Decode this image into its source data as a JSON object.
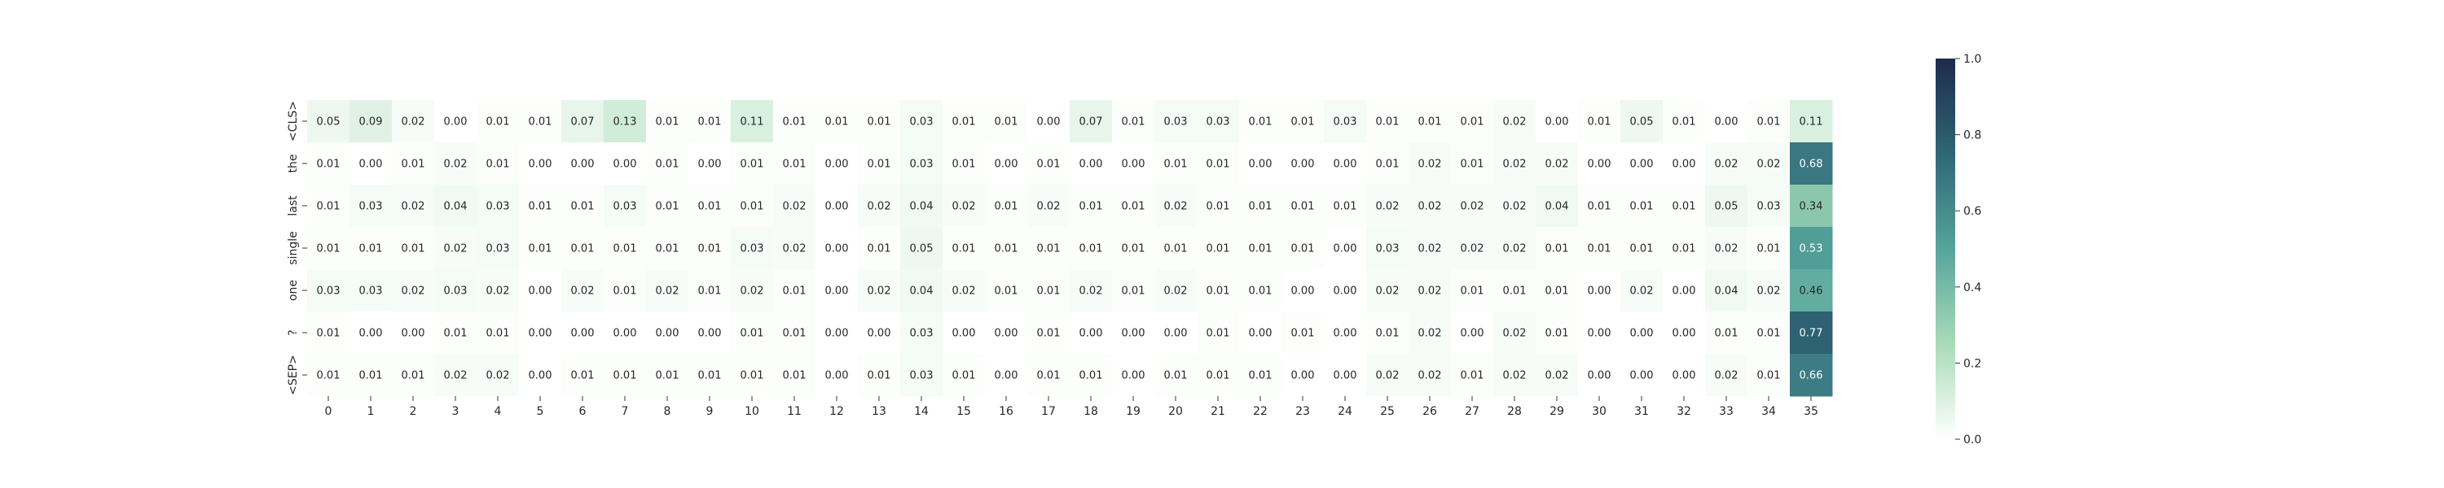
{
  "chart_data": {
    "type": "heatmap",
    "title": "",
    "xlabel": "",
    "ylabel": "",
    "x_labels": [
      "0",
      "1",
      "2",
      "3",
      "4",
      "5",
      "6",
      "7",
      "8",
      "9",
      "10",
      "11",
      "12",
      "13",
      "14",
      "15",
      "16",
      "17",
      "18",
      "19",
      "20",
      "21",
      "22",
      "23",
      "24",
      "25",
      "26",
      "27",
      "28",
      "29",
      "30",
      "31",
      "32",
      "33",
      "34",
      "35"
    ],
    "y_labels": [
      "<CLS>",
      "the",
      "last",
      "single",
      "one",
      "?",
      "<SEP>"
    ],
    "values": [
      [
        0.05,
        0.09,
        0.02,
        0.0,
        0.01,
        0.01,
        0.07,
        0.13,
        0.01,
        0.01,
        0.11,
        0.01,
        0.01,
        0.01,
        0.03,
        0.01,
        0.01,
        0.0,
        0.07,
        0.01,
        0.03,
        0.03,
        0.01,
        0.01,
        0.03,
        0.01,
        0.01,
        0.01,
        0.02,
        0.0,
        0.01,
        0.05,
        0.01,
        0.0,
        0.01,
        0.11
      ],
      [
        0.01,
        0.0,
        0.01,
        0.02,
        0.01,
        0.0,
        0.0,
        0.0,
        0.01,
        0.0,
        0.01,
        0.01,
        0.0,
        0.01,
        0.03,
        0.01,
        0.0,
        0.01,
        0.0,
        0.0,
        0.01,
        0.01,
        0.0,
        0.0,
        0.0,
        0.01,
        0.02,
        0.01,
        0.02,
        0.02,
        0.0,
        0.0,
        0.0,
        0.02,
        0.02,
        0.68
      ],
      [
        0.01,
        0.03,
        0.02,
        0.04,
        0.03,
        0.01,
        0.01,
        0.03,
        0.01,
        0.01,
        0.01,
        0.02,
        0.0,
        0.02,
        0.04,
        0.02,
        0.01,
        0.02,
        0.01,
        0.01,
        0.02,
        0.01,
        0.01,
        0.01,
        0.01,
        0.02,
        0.02,
        0.02,
        0.02,
        0.04,
        0.01,
        0.01,
        0.01,
        0.05,
        0.03,
        0.34
      ],
      [
        0.01,
        0.01,
        0.01,
        0.02,
        0.03,
        0.01,
        0.01,
        0.01,
        0.01,
        0.01,
        0.03,
        0.02,
        0.0,
        0.01,
        0.05,
        0.01,
        0.01,
        0.01,
        0.01,
        0.01,
        0.01,
        0.01,
        0.01,
        0.01,
        0.0,
        0.03,
        0.02,
        0.02,
        0.02,
        0.01,
        0.01,
        0.01,
        0.01,
        0.02,
        0.01,
        0.53
      ],
      [
        0.03,
        0.03,
        0.02,
        0.03,
        0.02,
        0.0,
        0.02,
        0.01,
        0.02,
        0.01,
        0.02,
        0.01,
        0.0,
        0.02,
        0.04,
        0.02,
        0.01,
        0.01,
        0.02,
        0.01,
        0.02,
        0.01,
        0.01,
        0.0,
        0.0,
        0.02,
        0.02,
        0.01,
        0.01,
        0.01,
        0.0,
        0.02,
        0.0,
        0.04,
        0.02,
        0.46
      ],
      [
        0.01,
        0.0,
        0.0,
        0.01,
        0.01,
        0.0,
        0.0,
        0.0,
        0.0,
        0.0,
        0.01,
        0.01,
        0.0,
        0.0,
        0.03,
        0.0,
        0.0,
        0.01,
        0.0,
        0.0,
        0.0,
        0.01,
        0.0,
        0.01,
        0.0,
        0.01,
        0.02,
        0.0,
        0.02,
        0.01,
        0.0,
        0.0,
        0.0,
        0.01,
        0.01,
        0.77
      ],
      [
        0.01,
        0.01,
        0.01,
        0.02,
        0.02,
        0.0,
        0.01,
        0.01,
        0.01,
        0.01,
        0.01,
        0.01,
        0.0,
        0.01,
        0.03,
        0.01,
        0.0,
        0.01,
        0.01,
        0.0,
        0.01,
        0.01,
        0.01,
        0.0,
        0.0,
        0.02,
        0.02,
        0.01,
        0.02,
        0.02,
        0.0,
        0.0,
        0.0,
        0.02,
        0.01,
        0.66
      ]
    ],
    "value_format": "0.00",
    "vmin": 0.0,
    "vmax": 1.0,
    "colorbar": {
      "ticks": [
        0.0,
        0.2,
        0.4,
        0.6,
        0.8,
        1.0
      ],
      "tick_labels": [
        "0.0",
        "0.2",
        "0.4",
        "0.6",
        "0.8",
        "1.0"
      ],
      "position": "right"
    },
    "colormap": [
      "#ffffff",
      "#a9dbb7",
      "#56a49c",
      "#2f6676",
      "#1e2b4a"
    ]
  }
}
